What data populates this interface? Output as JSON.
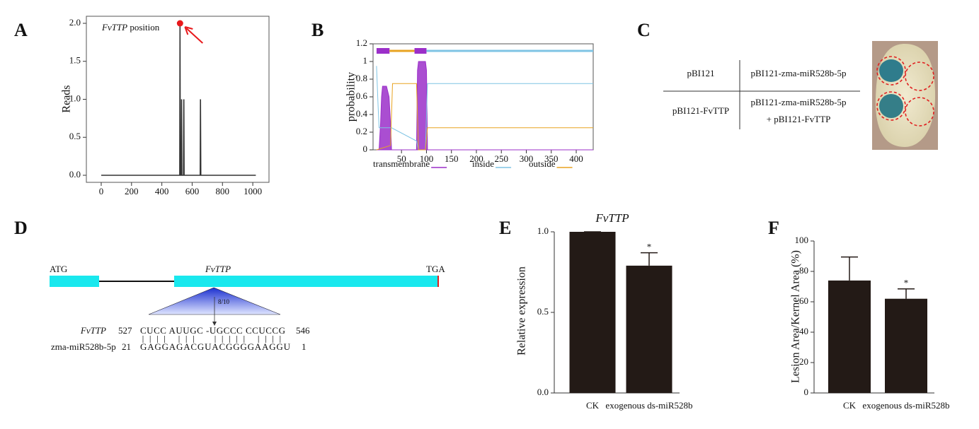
{
  "panels": [
    "A",
    "B",
    "C",
    "D",
    "E",
    "F"
  ],
  "chart_data": [
    {
      "type": "line",
      "annotation": [
        "FvTTP",
        "position"
      ],
      "y_label": "Reads",
      "color": "#333333",
      "x": [
        0,
        518,
        520,
        522,
        528,
        530,
        532,
        543,
        545,
        547,
        653,
        655,
        657,
        1020
      ],
      "values": [
        0,
        0,
        2.0,
        0,
        0,
        1.0,
        0,
        0,
        1.0,
        0,
        0,
        1.0,
        0,
        0
      ],
      "xlim": [
        -98,
        1107
      ],
      "ylim": [
        -0.093,
        2.093
      ],
      "xticks": [
        0,
        200,
        400,
        600,
        800,
        1000
      ],
      "yticks": [
        {
          "value": 0,
          "label": "0.0"
        },
        0.5,
        {
          "value": 1,
          "label": "1.0"
        },
        1.5,
        {
          "value": 2,
          "label": "2.0"
        }
      ],
      "marker_color": "#e8191c"
    },
    {
      "type": "line",
      "y_label": "probability",
      "xlim": [
        -7,
        434
      ],
      "ylim": [
        0,
        1.2
      ],
      "xticks": [
        50,
        100,
        150,
        200,
        250,
        300,
        350,
        400
      ],
      "yticks": [
        0,
        0.2,
        0.4,
        0.6,
        0.8,
        1,
        1.2
      ],
      "series": [
        {
          "name": "transmembrane",
          "color": "#9b2fc9",
          "area": true,
          "x": [
            0,
            5,
            8,
            10,
            12,
            20,
            25,
            28,
            30,
            80,
            82,
            84,
            98,
            100,
            102,
            434
          ],
          "values": [
            0,
            0,
            0.3,
            0.6,
            0.72,
            0.72,
            0.6,
            0.3,
            0,
            0,
            0.9,
            1.0,
            1.0,
            0.9,
            0,
            0
          ]
        },
        {
          "name": "inside",
          "color": "#7fc4e4",
          "x": [
            0,
            3,
            5,
            28,
            30,
            80,
            84,
            98,
            102,
            434
          ],
          "values": [
            0.95,
            0.5,
            0.25,
            0.25,
            0.25,
            0.1,
            0,
            0,
            0.75,
            0.75
          ]
        },
        {
          "name": "outside",
          "color": "#e8a321",
          "x": [
            0,
            28,
            32,
            80,
            84,
            98,
            102,
            434
          ],
          "values": [
            0,
            0.05,
            0.75,
            0.75,
            0,
            0,
            0.25,
            0.25
          ]
        }
      ],
      "topology": [
        {
          "start": 0,
          "end": 26,
          "color": "#9b2fc9"
        },
        {
          "start": 26,
          "end": 76,
          "color": "#e8a321"
        },
        {
          "start": 76,
          "end": 100,
          "color": "#9b2fc9"
        },
        {
          "start": 100,
          "end": 434,
          "color": "#7fc4e4"
        }
      ]
    },
    {
      "type": "bar",
      "title": "FvTTP",
      "y_label": "Relative expression",
      "color": "#231a16",
      "categories": [
        "CK",
        "exogenous ds-miR528b"
      ],
      "values": [
        1.0,
        0.79
      ],
      "errors": [
        0,
        0.08
      ],
      "significance": [
        null,
        "*"
      ],
      "ylim": [
        0,
        1
      ],
      "yticks": [
        {
          "value": 0,
          "label": "0.0"
        },
        0.5,
        {
          "value": 1,
          "label": "1.0"
        }
      ]
    },
    {
      "type": "bar",
      "y_label": "Lesion Area/Kernel Area (%)",
      "color": "#231a16",
      "categories": [
        "CK",
        "exogenous ds-miR528b"
      ],
      "values": [
        74,
        62
      ],
      "errors": [
        15.5,
        6.5
      ],
      "significance": [
        null,
        "*"
      ],
      "ylim": [
        0,
        100
      ],
      "yticks": [
        0,
        20,
        40,
        60,
        80,
        100
      ]
    }
  ],
  "table": {
    "rows": [
      [
        "pBI121",
        [
          "pBI121-zma-miR528b-5p"
        ]
      ],
      [
        "pBI121-FvTTP",
        [
          "pBI121-zma-miR528b-5p",
          "+ pBI121-FvTTP"
        ]
      ]
    ]
  },
  "diagram": {
    "start_codon": "ATG",
    "gene": "FvTTP",
    "stop_codon": "TGA",
    "cleavage": "8/10",
    "alignment": [
      {
        "name": "FvTTP",
        "start": 527,
        "sequence": "CUCC AUUGC -UGCCC CCUCCG",
        "end": 546
      },
      {
        "name": "zma-miR528b-5p",
        "start": 21,
        "sequence": "GAGGAGACGUACGGGGAAGGU",
        "end": 1
      }
    ]
  }
}
